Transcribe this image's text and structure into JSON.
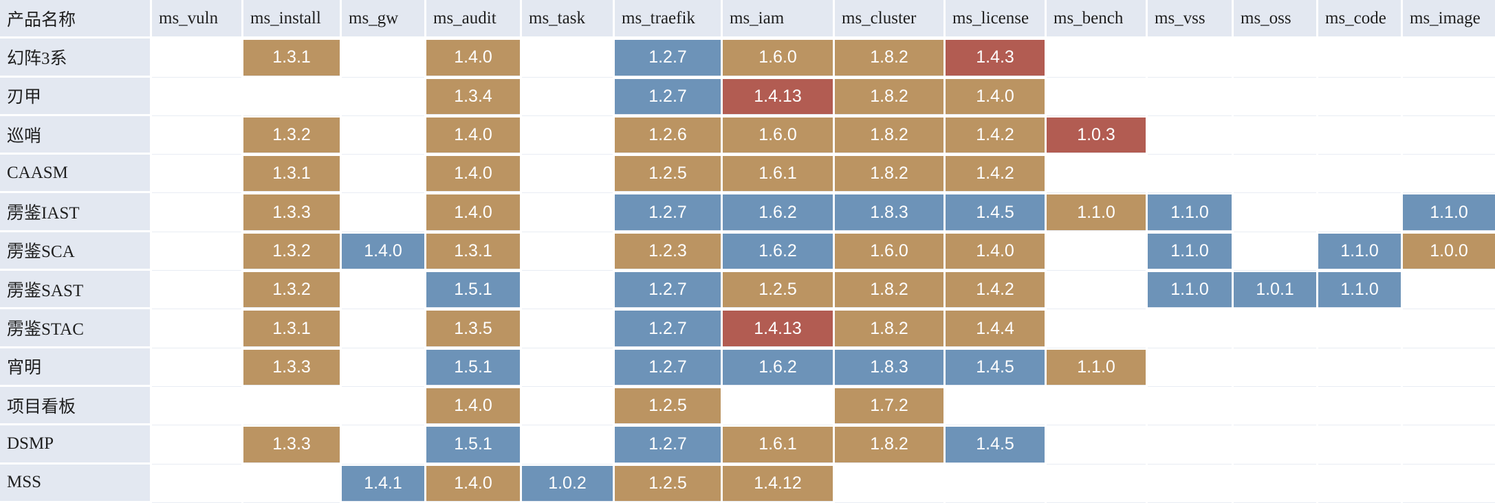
{
  "columns": [
    "产品名称",
    "ms_vuln",
    "ms_install",
    "ms_gw",
    "ms_audit",
    "ms_task",
    "ms_traefik",
    "ms_iam",
    "ms_cluster",
    "ms_license",
    "ms_bench",
    "ms_vss",
    "ms_oss",
    "ms_code",
    "ms_image"
  ],
  "colors": {
    "tan": "#bb9462",
    "blue": "#6d93b8",
    "red": "#b25c52",
    "header_bg": "#e3e8f1"
  },
  "rows": [
    {
      "name": "幻阵3系",
      "cells": [
        null,
        {
          "v": "1.3.1",
          "c": "tan"
        },
        null,
        {
          "v": "1.4.0",
          "c": "tan"
        },
        null,
        {
          "v": "1.2.7",
          "c": "blue"
        },
        {
          "v": "1.6.0",
          "c": "tan"
        },
        {
          "v": "1.8.2",
          "c": "tan"
        },
        {
          "v": "1.4.3",
          "c": "red"
        },
        null,
        null,
        null,
        null,
        null
      ]
    },
    {
      "name": "刃甲",
      "cells": [
        null,
        null,
        null,
        {
          "v": "1.3.4",
          "c": "tan"
        },
        null,
        {
          "v": "1.2.7",
          "c": "blue"
        },
        {
          "v": "1.4.13",
          "c": "red"
        },
        {
          "v": "1.8.2",
          "c": "tan"
        },
        {
          "v": "1.4.0",
          "c": "tan"
        },
        null,
        null,
        null,
        null,
        null
      ]
    },
    {
      "name": "巡哨",
      "cells": [
        null,
        {
          "v": "1.3.2",
          "c": "tan"
        },
        null,
        {
          "v": "1.4.0",
          "c": "tan"
        },
        null,
        {
          "v": "1.2.6",
          "c": "tan"
        },
        {
          "v": "1.6.0",
          "c": "tan"
        },
        {
          "v": "1.8.2",
          "c": "tan"
        },
        {
          "v": "1.4.2",
          "c": "tan"
        },
        {
          "v": "1.0.3",
          "c": "red"
        },
        null,
        null,
        null,
        null
      ]
    },
    {
      "name": "CAASM",
      "cells": [
        null,
        {
          "v": "1.3.1",
          "c": "tan"
        },
        null,
        {
          "v": "1.4.0",
          "c": "tan"
        },
        null,
        {
          "v": "1.2.5",
          "c": "tan"
        },
        {
          "v": "1.6.1",
          "c": "tan"
        },
        {
          "v": "1.8.2",
          "c": "tan"
        },
        {
          "v": "1.4.2",
          "c": "tan"
        },
        null,
        null,
        null,
        null,
        null
      ]
    },
    {
      "name": "雳鉴IAST",
      "cells": [
        null,
        {
          "v": "1.3.3",
          "c": "tan"
        },
        null,
        {
          "v": "1.4.0",
          "c": "tan"
        },
        null,
        {
          "v": "1.2.7",
          "c": "blue"
        },
        {
          "v": "1.6.2",
          "c": "blue"
        },
        {
          "v": "1.8.3",
          "c": "blue"
        },
        {
          "v": "1.4.5",
          "c": "blue"
        },
        {
          "v": "1.1.0",
          "c": "tan"
        },
        {
          "v": "1.1.0",
          "c": "blue"
        },
        null,
        null,
        {
          "v": "1.1.0",
          "c": "blue"
        }
      ]
    },
    {
      "name": "雳鉴SCA",
      "cells": [
        null,
        {
          "v": "1.3.2",
          "c": "tan"
        },
        {
          "v": "1.4.0",
          "c": "blue"
        },
        {
          "v": "1.3.1",
          "c": "tan"
        },
        null,
        {
          "v": "1.2.3",
          "c": "tan"
        },
        {
          "v": "1.6.2",
          "c": "blue"
        },
        {
          "v": "1.6.0",
          "c": "tan"
        },
        {
          "v": "1.4.0",
          "c": "tan"
        },
        null,
        {
          "v": "1.1.0",
          "c": "blue"
        },
        null,
        {
          "v": "1.1.0",
          "c": "blue"
        },
        {
          "v": "1.0.0",
          "c": "tan"
        }
      ]
    },
    {
      "name": "雳鉴SAST",
      "cells": [
        null,
        {
          "v": "1.3.2",
          "c": "tan"
        },
        null,
        {
          "v": "1.5.1",
          "c": "blue"
        },
        null,
        {
          "v": "1.2.7",
          "c": "blue"
        },
        {
          "v": "1.2.5",
          "c": "tan"
        },
        {
          "v": "1.8.2",
          "c": "tan"
        },
        {
          "v": "1.4.2",
          "c": "tan"
        },
        null,
        {
          "v": "1.1.0",
          "c": "blue"
        },
        {
          "v": "1.0.1",
          "c": "blue"
        },
        {
          "v": "1.1.0",
          "c": "blue"
        },
        null
      ]
    },
    {
      "name": "雳鉴STAC",
      "cells": [
        null,
        {
          "v": "1.3.1",
          "c": "tan"
        },
        null,
        {
          "v": "1.3.5",
          "c": "tan"
        },
        null,
        {
          "v": "1.2.7",
          "c": "blue"
        },
        {
          "v": "1.4.13",
          "c": "red"
        },
        {
          "v": "1.8.2",
          "c": "tan"
        },
        {
          "v": "1.4.4",
          "c": "tan"
        },
        null,
        null,
        null,
        null,
        null
      ]
    },
    {
      "name": "宵明",
      "cells": [
        null,
        {
          "v": "1.3.3",
          "c": "tan"
        },
        null,
        {
          "v": "1.5.1",
          "c": "blue"
        },
        null,
        {
          "v": "1.2.7",
          "c": "blue"
        },
        {
          "v": "1.6.2",
          "c": "blue"
        },
        {
          "v": "1.8.3",
          "c": "blue"
        },
        {
          "v": "1.4.5",
          "c": "blue"
        },
        {
          "v": "1.1.0",
          "c": "tan"
        },
        null,
        null,
        null,
        null
      ]
    },
    {
      "name": "项目看板",
      "cells": [
        null,
        null,
        null,
        {
          "v": "1.4.0",
          "c": "tan"
        },
        null,
        {
          "v": "1.2.5",
          "c": "tan"
        },
        null,
        {
          "v": "1.7.2",
          "c": "tan"
        },
        null,
        null,
        null,
        null,
        null,
        null
      ]
    },
    {
      "name": "DSMP",
      "cells": [
        null,
        {
          "v": "1.3.3",
          "c": "tan"
        },
        null,
        {
          "v": "1.5.1",
          "c": "blue"
        },
        null,
        {
          "v": "1.2.7",
          "c": "blue"
        },
        {
          "v": "1.6.1",
          "c": "tan"
        },
        {
          "v": "1.8.2",
          "c": "tan"
        },
        {
          "v": "1.4.5",
          "c": "blue"
        },
        null,
        null,
        null,
        null,
        null
      ]
    },
    {
      "name": "MSS",
      "cells": [
        null,
        null,
        {
          "v": "1.4.1",
          "c": "blue"
        },
        {
          "v": "1.4.0",
          "c": "tan"
        },
        {
          "v": "1.0.2",
          "c": "blue"
        },
        {
          "v": "1.2.5",
          "c": "tan"
        },
        {
          "v": "1.4.12",
          "c": "tan"
        },
        null,
        null,
        null,
        null,
        null,
        null,
        null
      ]
    }
  ]
}
